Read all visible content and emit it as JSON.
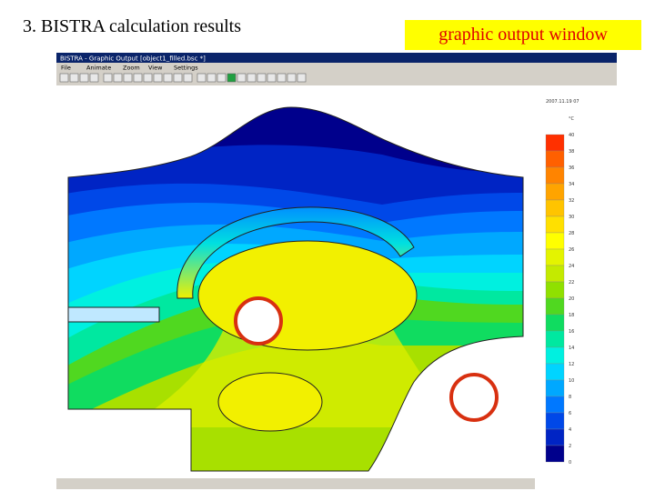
{
  "slide": {
    "title": "3. BISTRA calculation results",
    "callout": "graphic output window"
  },
  "window": {
    "title": "BISTRA - Graphic Output [object1_filled.bsc *]",
    "menu": [
      "File",
      "Animate",
      "Zoom",
      "View",
      "Settings"
    ]
  },
  "legend": {
    "date": "2007.11.19 07",
    "unit": "°C",
    "labels": [
      40,
      38,
      36,
      34,
      32,
      30,
      28,
      26,
      24,
      22,
      20,
      18,
      16,
      14,
      12,
      10,
      8,
      6,
      4,
      2,
      0
    ],
    "colors": [
      "#ff3000",
      "#ff6000",
      "#ff8400",
      "#ffa400",
      "#ffc400",
      "#ffe000",
      "#ffff00",
      "#e4f400",
      "#c4ea00",
      "#90e000",
      "#50d820",
      "#10dc60",
      "#00e8a0",
      "#00f0e0",
      "#00d4ff",
      "#00a8ff",
      "#0078ff",
      "#0048e8",
      "#0024c4",
      "#00008c"
    ]
  }
}
